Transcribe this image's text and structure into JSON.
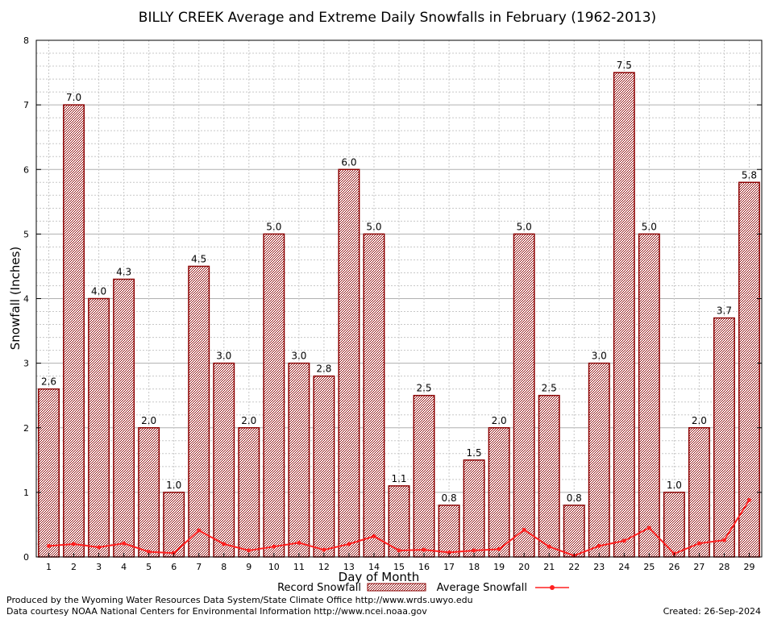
{
  "chart_data": {
    "type": "bar",
    "title": "BILLY CREEK Average and Extreme Daily Snowfalls in February (1962-2013)",
    "xlabel": "Day of Month",
    "ylabel": "Snowfall (Inches)",
    "ylim": [
      0,
      8
    ],
    "yticks": [
      "0",
      "1",
      "2",
      "3",
      "4",
      "5",
      "6",
      "7",
      "8"
    ],
    "grid": true,
    "categories": [
      "1",
      "2",
      "3",
      "4",
      "5",
      "6",
      "7",
      "8",
      "9",
      "10",
      "11",
      "12",
      "13",
      "14",
      "15",
      "16",
      "17",
      "18",
      "19",
      "20",
      "21",
      "22",
      "23",
      "24",
      "25",
      "26",
      "27",
      "28",
      "29"
    ],
    "series": [
      {
        "name": "Record Snowfall",
        "kind": "bar",
        "color": "#8b0000",
        "values": [
          2.6,
          7.0,
          4.0,
          4.3,
          2.0,
          1.0,
          4.5,
          3.0,
          2.0,
          5.0,
          3.0,
          2.8,
          6.0,
          5.0,
          1.1,
          2.5,
          0.8,
          1.5,
          2.0,
          5.0,
          2.5,
          0.8,
          3.0,
          7.5,
          5.0,
          1.0,
          2.0,
          3.7,
          5.8
        ],
        "labels": [
          "2.6",
          "7.0",
          "4.0",
          "4.3",
          "2.0",
          "1.0",
          "4.5",
          "3.0",
          "2.0",
          "5.0",
          "3.0",
          "2.8",
          "6.0",
          "5.0",
          "1.1",
          "2.5",
          "0.8",
          "1.5",
          "2.0",
          "5.0",
          "2.5",
          "0.8",
          "3.0",
          "7.5",
          "5.0",
          "1.0",
          "2.0",
          "3.7",
          "5.8"
        ]
      },
      {
        "name": "Average Snowfall",
        "kind": "line",
        "color": "#ff2020",
        "values": [
          0.17,
          0.2,
          0.15,
          0.21,
          0.08,
          0.06,
          0.41,
          0.2,
          0.1,
          0.16,
          0.22,
          0.11,
          0.2,
          0.32,
          0.1,
          0.11,
          0.07,
          0.1,
          0.12,
          0.42,
          0.16,
          0.02,
          0.17,
          0.25,
          0.45,
          0.05,
          0.21,
          0.26,
          0.88
        ]
      }
    ],
    "legend": "bottom"
  },
  "footer": {
    "left_line1": "Produced by the Wyoming Water Resources Data System/State Climate Office http://www.wrds.uwyo.edu",
    "left_line2": "Data courtesy NOAA National Centers for Environmental Information http://www.ncei.noaa.gov",
    "created": "Created: 26-Sep-2024"
  }
}
